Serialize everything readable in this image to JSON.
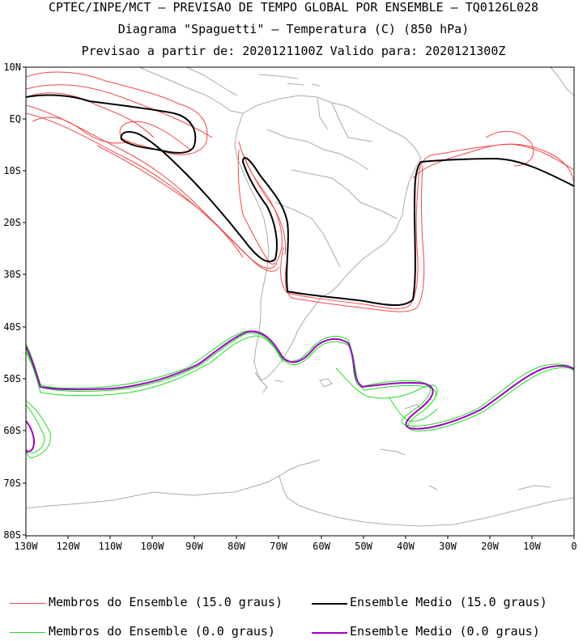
{
  "titles": {
    "line1": "CPTEC/INPE/MCT – PREVISAO DE TEMPO GLOBAL POR ENSEMBLE – TQ0126L028",
    "line2": "Diagrama \"Spaguetti\" – Temperatura (C) (850 hPa)",
    "line3": "Previsao a partir de: 2020121100Z  Valido para: 2020121300Z"
  },
  "axes": {
    "lat_labels": [
      "10N",
      "EQ",
      "10S",
      "20S",
      "30S",
      "40S",
      "50S",
      "60S",
      "70S",
      "80S"
    ],
    "lon_labels": [
      "130W",
      "120W",
      "110W",
      "100W",
      "90W",
      "80W",
      "70W",
      "60W",
      "50W",
      "40W",
      "30W",
      "20W",
      "10W",
      "0"
    ]
  },
  "legend": [
    {
      "label": "Membros do Ensemble (15.0 graus)",
      "color": "#f04848"
    },
    {
      "label": "Ensemble Medio (15.0 graus)",
      "color": "#000000"
    },
    {
      "label": "Membros do Ensemble (0.0 graus)",
      "color": "#22dd22"
    },
    {
      "label": "Ensemble Medio (0.0 graus)",
      "color": "#a000c8"
    }
  ],
  "colors": {
    "coast": "#aaaaaa",
    "member_15": "#f04848",
    "mean_15": "#000000",
    "member_0": "#22dd22",
    "mean_0": "#a000c8"
  }
}
